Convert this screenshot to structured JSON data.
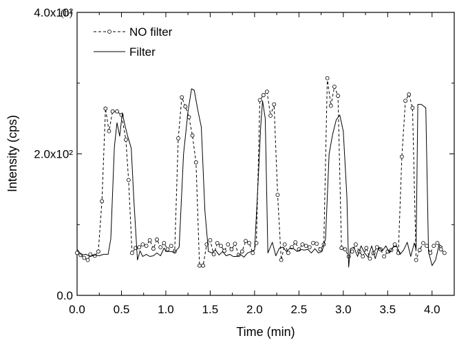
{
  "chart_data": {
    "type": "line",
    "panel_label": "(b)",
    "xlabel": "Time (min)",
    "ylabel": "Intensity (cps)",
    "xlim": [
      0,
      4.25
    ],
    "ylim": [
      0,
      400
    ],
    "x_ticks": [
      {
        "value": 0.0,
        "label": "0.0"
      },
      {
        "value": 0.5,
        "label": "0.5"
      },
      {
        "value": 1.0,
        "label": "1.0"
      },
      {
        "value": 1.5,
        "label": "1.5"
      },
      {
        "value": 2.0,
        "label": "2.0"
      },
      {
        "value": 2.5,
        "label": "2.5"
      },
      {
        "value": 3.0,
        "label": "3.0"
      },
      {
        "value": 3.5,
        "label": "3.5"
      },
      {
        "value": 4.0,
        "label": "4.0"
      }
    ],
    "y_ticks": [
      {
        "value": 0,
        "label": "0.0"
      },
      {
        "value": 200,
        "label": "2.0x10²"
      },
      {
        "value": 400,
        "label": "4.0x10²"
      }
    ],
    "grid": false,
    "legend_position": "top-left",
    "colors": {
      "series": "#000000",
      "axes": "#000000",
      "background": "#ffffff"
    },
    "series": [
      {
        "name": "NO filter",
        "style": "dashed-circle-markers",
        "points": [
          [
            0.0,
            60
          ],
          [
            0.04,
            57
          ],
          [
            0.08,
            53
          ],
          [
            0.12,
            50
          ],
          [
            0.15,
            58
          ],
          [
            0.2,
            56
          ],
          [
            0.24,
            62
          ],
          [
            0.28,
            133
          ],
          [
            0.32,
            264
          ],
          [
            0.36,
            232
          ],
          [
            0.4,
            260
          ],
          [
            0.45,
            260
          ],
          [
            0.5,
            255
          ],
          [
            0.55,
            220
          ],
          [
            0.58,
            163
          ],
          [
            0.62,
            60
          ],
          [
            0.66,
            67
          ],
          [
            0.7,
            68
          ],
          [
            0.74,
            72
          ],
          [
            0.78,
            70
          ],
          [
            0.82,
            78
          ],
          [
            0.86,
            66
          ],
          [
            0.9,
            79
          ],
          [
            0.94,
            68
          ],
          [
            0.98,
            74
          ],
          [
            1.02,
            65
          ],
          [
            1.06,
            70
          ],
          [
            1.1,
            62
          ],
          [
            1.14,
            222
          ],
          [
            1.18,
            280
          ],
          [
            1.22,
            267
          ],
          [
            1.26,
            252
          ],
          [
            1.3,
            226
          ],
          [
            1.34,
            188
          ],
          [
            1.38,
            42
          ],
          [
            1.42,
            42
          ],
          [
            1.46,
            72
          ],
          [
            1.5,
            78
          ],
          [
            1.54,
            58
          ],
          [
            1.58,
            74
          ],
          [
            1.62,
            70
          ],
          [
            1.66,
            63
          ],
          [
            1.7,
            72
          ],
          [
            1.74,
            65
          ],
          [
            1.78,
            73
          ],
          [
            1.82,
            57
          ],
          [
            1.86,
            62
          ],
          [
            1.9,
            77
          ],
          [
            1.94,
            74
          ],
          [
            1.98,
            60
          ],
          [
            2.02,
            74
          ],
          [
            2.06,
            276
          ],
          [
            2.1,
            283
          ],
          [
            2.14,
            288
          ],
          [
            2.18,
            254
          ],
          [
            2.22,
            270
          ],
          [
            2.26,
            142
          ],
          [
            2.3,
            50
          ],
          [
            2.34,
            72
          ],
          [
            2.38,
            60
          ],
          [
            2.42,
            68
          ],
          [
            2.46,
            75
          ],
          [
            2.5,
            65
          ],
          [
            2.54,
            72
          ],
          [
            2.58,
            70
          ],
          [
            2.62,
            68
          ],
          [
            2.66,
            74
          ],
          [
            2.7,
            73
          ],
          [
            2.74,
            65
          ],
          [
            2.78,
            72
          ],
          [
            2.82,
            307
          ],
          [
            2.86,
            268
          ],
          [
            2.9,
            295
          ],
          [
            2.94,
            282
          ],
          [
            2.98,
            67
          ],
          [
            3.02,
            65
          ],
          [
            3.06,
            55
          ],
          [
            3.1,
            62
          ],
          [
            3.14,
            72
          ],
          [
            3.18,
            62
          ],
          [
            3.22,
            55
          ],
          [
            3.26,
            67
          ],
          [
            3.3,
            52
          ],
          [
            3.34,
            60
          ],
          [
            3.38,
            68
          ],
          [
            3.42,
            65
          ],
          [
            3.46,
            55
          ],
          [
            3.5,
            62
          ],
          [
            3.54,
            64
          ],
          [
            3.58,
            72
          ],
          [
            3.62,
            60
          ],
          [
            3.66,
            196
          ],
          [
            3.7,
            275
          ],
          [
            3.74,
            284
          ],
          [
            3.78,
            265
          ],
          [
            3.82,
            50
          ],
          [
            3.86,
            64
          ],
          [
            3.9,
            74
          ],
          [
            3.94,
            70
          ],
          [
            3.98,
            60
          ],
          [
            4.02,
            70
          ],
          [
            4.06,
            74
          ],
          [
            4.1,
            65
          ],
          [
            4.14,
            60
          ]
        ]
      },
      {
        "name": "Filter",
        "style": "solid",
        "points": [
          [
            0.0,
            65
          ],
          [
            0.05,
            57
          ],
          [
            0.1,
            58
          ],
          [
            0.15,
            55
          ],
          [
            0.2,
            57
          ],
          [
            0.25,
            56
          ],
          [
            0.3,
            58
          ],
          [
            0.35,
            58
          ],
          [
            0.38,
            80
          ],
          [
            0.42,
            210
          ],
          [
            0.45,
            244
          ],
          [
            0.48,
            225
          ],
          [
            0.51,
            258
          ],
          [
            0.54,
            240
          ],
          [
            0.57,
            225
          ],
          [
            0.61,
            208
          ],
          [
            0.64,
            135
          ],
          [
            0.68,
            50
          ],
          [
            0.71,
            63
          ],
          [
            0.74,
            55
          ],
          [
            0.78,
            58
          ],
          [
            0.82,
            55
          ],
          [
            0.86,
            56
          ],
          [
            0.9,
            60
          ],
          [
            0.94,
            56
          ],
          [
            0.98,
            67
          ],
          [
            1.0,
            62
          ],
          [
            1.05,
            62
          ],
          [
            1.1,
            61
          ],
          [
            1.15,
            68
          ],
          [
            1.2,
            200
          ],
          [
            1.25,
            260
          ],
          [
            1.29,
            292
          ],
          [
            1.32,
            290
          ],
          [
            1.36,
            262
          ],
          [
            1.4,
            238
          ],
          [
            1.44,
            120
          ],
          [
            1.48,
            62
          ],
          [
            1.52,
            60
          ],
          [
            1.56,
            64
          ],
          [
            1.6,
            57
          ],
          [
            1.64,
            62
          ],
          [
            1.68,
            56
          ],
          [
            1.72,
            58
          ],
          [
            1.76,
            55
          ],
          [
            1.8,
            55
          ],
          [
            1.84,
            58
          ],
          [
            1.88,
            54
          ],
          [
            1.92,
            60
          ],
          [
            1.96,
            62
          ],
          [
            2.0,
            64
          ],
          [
            2.04,
            160
          ],
          [
            2.07,
            240
          ],
          [
            2.09,
            275
          ],
          [
            2.12,
            250
          ],
          [
            2.15,
            60
          ],
          [
            2.2,
            75
          ],
          [
            2.24,
            56
          ],
          [
            2.28,
            67
          ],
          [
            2.32,
            68
          ],
          [
            2.36,
            62
          ],
          [
            2.4,
            67
          ],
          [
            2.44,
            66
          ],
          [
            2.48,
            62
          ],
          [
            2.52,
            65
          ],
          [
            2.56,
            64
          ],
          [
            2.6,
            65
          ],
          [
            2.64,
            60
          ],
          [
            2.68,
            66
          ],
          [
            2.72,
            60
          ],
          [
            2.76,
            62
          ],
          [
            2.8,
            80
          ],
          [
            2.84,
            200
          ],
          [
            2.88,
            228
          ],
          [
            2.92,
            248
          ],
          [
            2.96,
            255
          ],
          [
            3.0,
            232
          ],
          [
            3.04,
            140
          ],
          [
            3.06,
            40
          ],
          [
            3.08,
            66
          ],
          [
            3.12,
            68
          ],
          [
            3.16,
            55
          ],
          [
            3.2,
            70
          ],
          [
            3.24,
            60
          ],
          [
            3.28,
            54
          ],
          [
            3.32,
            70
          ],
          [
            3.36,
            52
          ],
          [
            3.4,
            68
          ],
          [
            3.44,
            63
          ],
          [
            3.48,
            70
          ],
          [
            3.52,
            60
          ],
          [
            3.56,
            68
          ],
          [
            3.6,
            70
          ],
          [
            3.64,
            58
          ],
          [
            3.68,
            64
          ],
          [
            3.72,
            75
          ],
          [
            3.76,
            55
          ],
          [
            3.8,
            74
          ],
          [
            3.82,
            65
          ],
          [
            3.84,
            270
          ],
          [
            3.88,
            270
          ],
          [
            3.93,
            265
          ],
          [
            3.96,
            62
          ],
          [
            4.0,
            42
          ],
          [
            4.04,
            50
          ],
          [
            4.08,
            72
          ],
          [
            4.12,
            68
          ]
        ]
      }
    ]
  }
}
